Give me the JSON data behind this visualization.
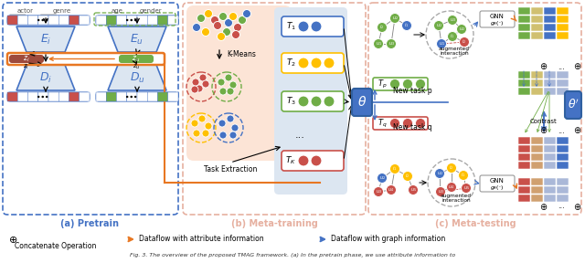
{
  "fig_width": 6.4,
  "fig_height": 2.88,
  "dpi": 100,
  "bg_color": "#ffffff",
  "panel_a_label": "(a) Pretrain",
  "panel_b_label": "(b) Meta-training",
  "panel_c_label": "(c) Meta-testing",
  "caption": "Fig. 3. The overview of the proposed TMAG framework. (a) In the pretrain phase, we use attribute information to",
  "colors": {
    "blue_border": "#4472c4",
    "orange_border": "#e87722",
    "red_border": "#c00000",
    "green_border": "#70ad47",
    "light_orange_bg": "#fce4d6",
    "light_blue_bg": "#dce6f1",
    "dot_red": "#c9504a",
    "dot_green": "#70ad47",
    "dot_blue": "#4472c4",
    "dot_yellow": "#ffc000",
    "dot_gray": "#aaaaaa",
    "box_brown": "#9e4a3c",
    "box_green": "#70ad47",
    "theta_bg": "#4472c4",
    "panel_b_border": "#e6b0a0",
    "panel_c_border": "#e6b0a0"
  }
}
